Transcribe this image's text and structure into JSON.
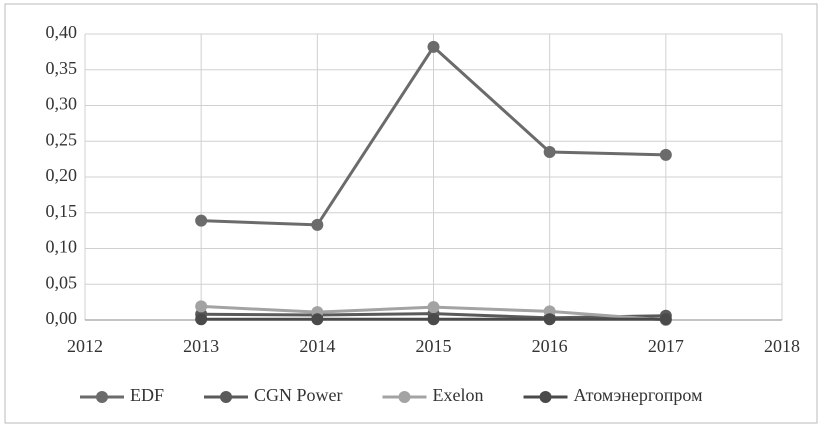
{
  "chart_data": {
    "type": "line",
    "x": [
      2013,
      2014,
      2015,
      2016,
      2017
    ],
    "series": [
      {
        "name": "EDF",
        "color": "#6b6b6b",
        "values": [
          0.139,
          0.133,
          0.382,
          0.235,
          0.231
        ]
      },
      {
        "name": "CGN Power",
        "color": "#5a5a5a",
        "values": [
          0.008,
          0.007,
          0.009,
          0.003,
          0.006
        ]
      },
      {
        "name": "Exelon",
        "color": "#a3a3a3",
        "values": [
          0.019,
          0.011,
          0.018,
          0.012,
          0.0
        ]
      },
      {
        "name": "Атомэнергопром",
        "color": "#4a4a4a",
        "values": [
          0.001,
          0.001,
          0.001,
          0.001,
          0.001
        ]
      }
    ],
    "xlim": [
      2012,
      2018
    ],
    "xticks": [
      2012,
      2013,
      2014,
      2015,
      2016,
      2017,
      2018
    ],
    "ylim": [
      0,
      0.4
    ],
    "yticks": [
      {
        "value": 0,
        "label": "0,00"
      },
      {
        "value": 0.05,
        "label": "0,05"
      },
      {
        "value": 0.1,
        "label": "0,10"
      },
      {
        "value": 0.15,
        "label": "0,15"
      },
      {
        "value": 0.2,
        "label": "0,20"
      },
      {
        "value": 0.25,
        "label": "0,25"
      },
      {
        "value": 0.3,
        "label": "0,30"
      },
      {
        "value": 0.35,
        "label": "0,35"
      },
      {
        "value": 0.4,
        "label": "0,40"
      }
    ],
    "grid": true,
    "legend": "bottom"
  }
}
